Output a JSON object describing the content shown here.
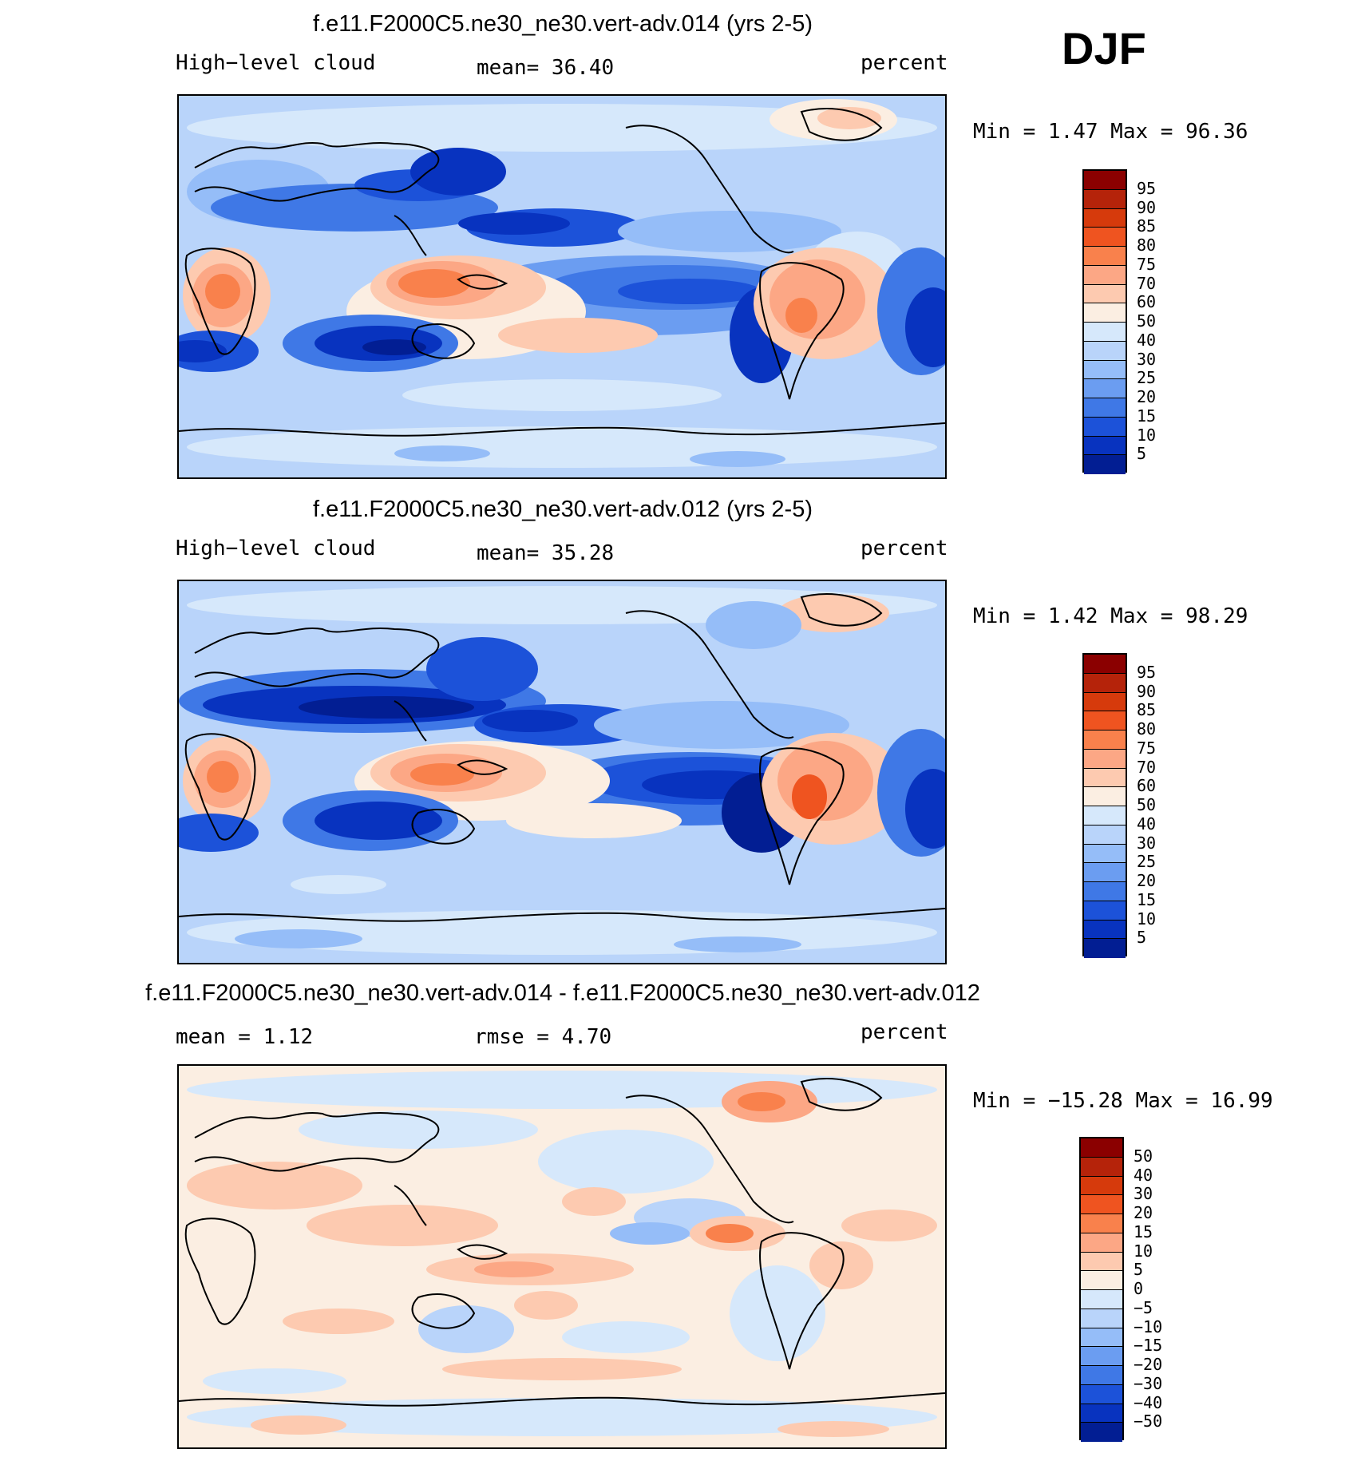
{
  "season_label": "DJF",
  "panels": [
    {
      "title": "f.e11.F2000C5.ne30_ne30.vert-adv.014 (yrs 2-5)",
      "left_text": "High−level cloud",
      "center_text": "mean=   36.40",
      "right_text": "percent",
      "minmax": "Min =    1.47 Max =   96.36"
    },
    {
      "title": "f.e11.F2000C5.ne30_ne30.vert-adv.012 (yrs 2-5)",
      "left_text": "High−level cloud",
      "center_text": "mean=   35.28",
      "right_text": "percent",
      "minmax": "Min =    1.42 Max =   98.29"
    },
    {
      "title": "f.e11.F2000C5.ne30_ne30.vert-adv.014 - f.e11.F2000C5.ne30_ne30.vert-adv.012",
      "left_text": "mean =    1.12",
      "center_text": "rmse =    4.70",
      "right_text": "percent",
      "minmax": "Min = −15.28 Max =   16.99"
    }
  ],
  "chart_data": [
    {
      "type": "heatmap",
      "title": "f.e11.F2000C5.ne30_ne30.vert-adv.014 (yrs 2-5)",
      "variable": "High−level cloud",
      "units": "percent",
      "mean": 36.4,
      "min": 1.47,
      "max": 96.36,
      "colorbar_levels": [
        "95",
        "90",
        "85",
        "80",
        "75",
        "70",
        "60",
        "50",
        "40",
        "30",
        "25",
        "20",
        "15",
        "10",
        "5"
      ],
      "colorbar_colors": [
        "#8b0000",
        "#b5230a",
        "#d63a0c",
        "#ef5420",
        "#f9814c",
        "#fca785",
        "#fdcab0",
        "#fbeee2",
        "#d6e8fb",
        "#b9d4fa",
        "#95bdf8",
        "#6b9df1",
        "#3f78e6",
        "#1c52d9",
        "#0833bf",
        "#021e93"
      ]
    },
    {
      "type": "heatmap",
      "title": "f.e11.F2000C5.ne30_ne30.vert-adv.012 (yrs 2-5)",
      "variable": "High−level cloud",
      "units": "percent",
      "mean": 35.28,
      "min": 1.42,
      "max": 98.29,
      "colorbar_levels": [
        "95",
        "90",
        "85",
        "80",
        "75",
        "70",
        "60",
        "50",
        "40",
        "30",
        "25",
        "20",
        "15",
        "10",
        "5"
      ],
      "colorbar_colors": [
        "#8b0000",
        "#b5230a",
        "#d63a0c",
        "#ef5420",
        "#f9814c",
        "#fca785",
        "#fdcab0",
        "#fbeee2",
        "#d6e8fb",
        "#b9d4fa",
        "#95bdf8",
        "#6b9df1",
        "#3f78e6",
        "#1c52d9",
        "#0833bf",
        "#021e93"
      ]
    },
    {
      "type": "heatmap",
      "title": "f.e11.F2000C5.ne30_ne30.vert-adv.014 - f.e11.F2000C5.ne30_ne30.vert-adv.012",
      "units": "percent",
      "mean": 1.12,
      "rmse": 4.7,
      "min": -15.28,
      "max": 16.99,
      "colorbar_levels": [
        "50",
        "40",
        "30",
        "20",
        "15",
        "10",
        "5",
        "0",
        "−5",
        "−10",
        "−15",
        "−20",
        "−30",
        "−40",
        "−50"
      ],
      "colorbar_colors": [
        "#8b0000",
        "#b5230a",
        "#d63a0c",
        "#ef5420",
        "#f9814c",
        "#fca785",
        "#fdcab0",
        "#fbeee2",
        "#d6e8fb",
        "#b9d4fa",
        "#95bdf8",
        "#6b9df1",
        "#3f78e6",
        "#1c52d9",
        "#0833bf",
        "#021e93"
      ]
    }
  ]
}
